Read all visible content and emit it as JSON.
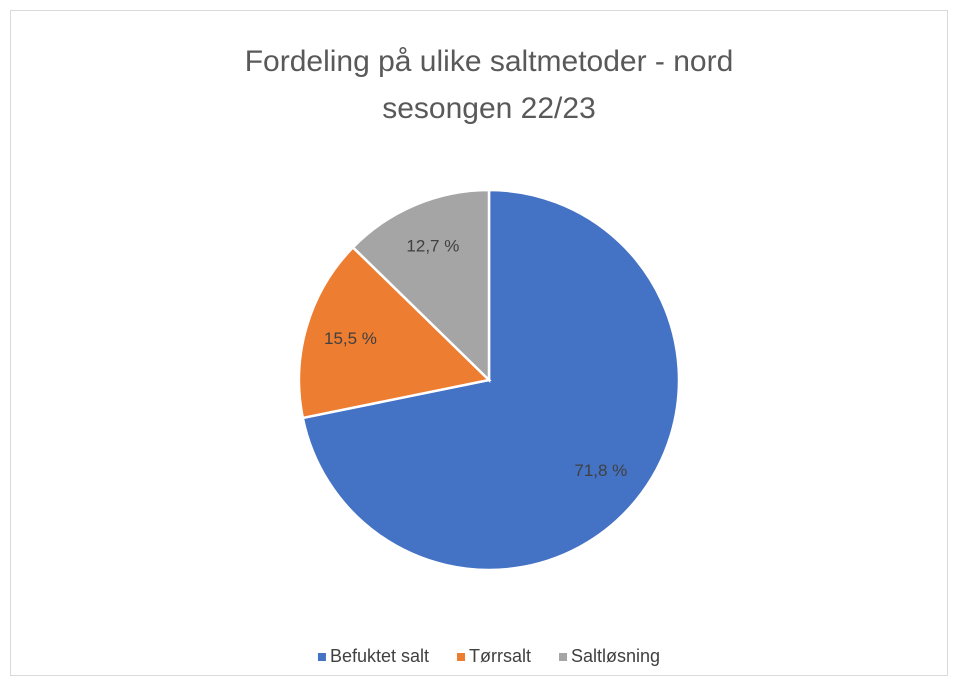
{
  "chart_data": {
    "type": "pie",
    "title": [
      "Fordeling på ulike saltmetoder - nord",
      "sesongen 22/23"
    ],
    "categories": [
      "Befuktet salt",
      "Tørrsalt",
      "Saltløsning"
    ],
    "values": [
      71.8,
      15.5,
      12.7
    ],
    "value_labels": [
      "71,8 %",
      "15,5 %",
      "12,7 %"
    ],
    "colors": [
      "#4472c4",
      "#ed7d31",
      "#a5a5a5"
    ],
    "legend": "bottom"
  }
}
